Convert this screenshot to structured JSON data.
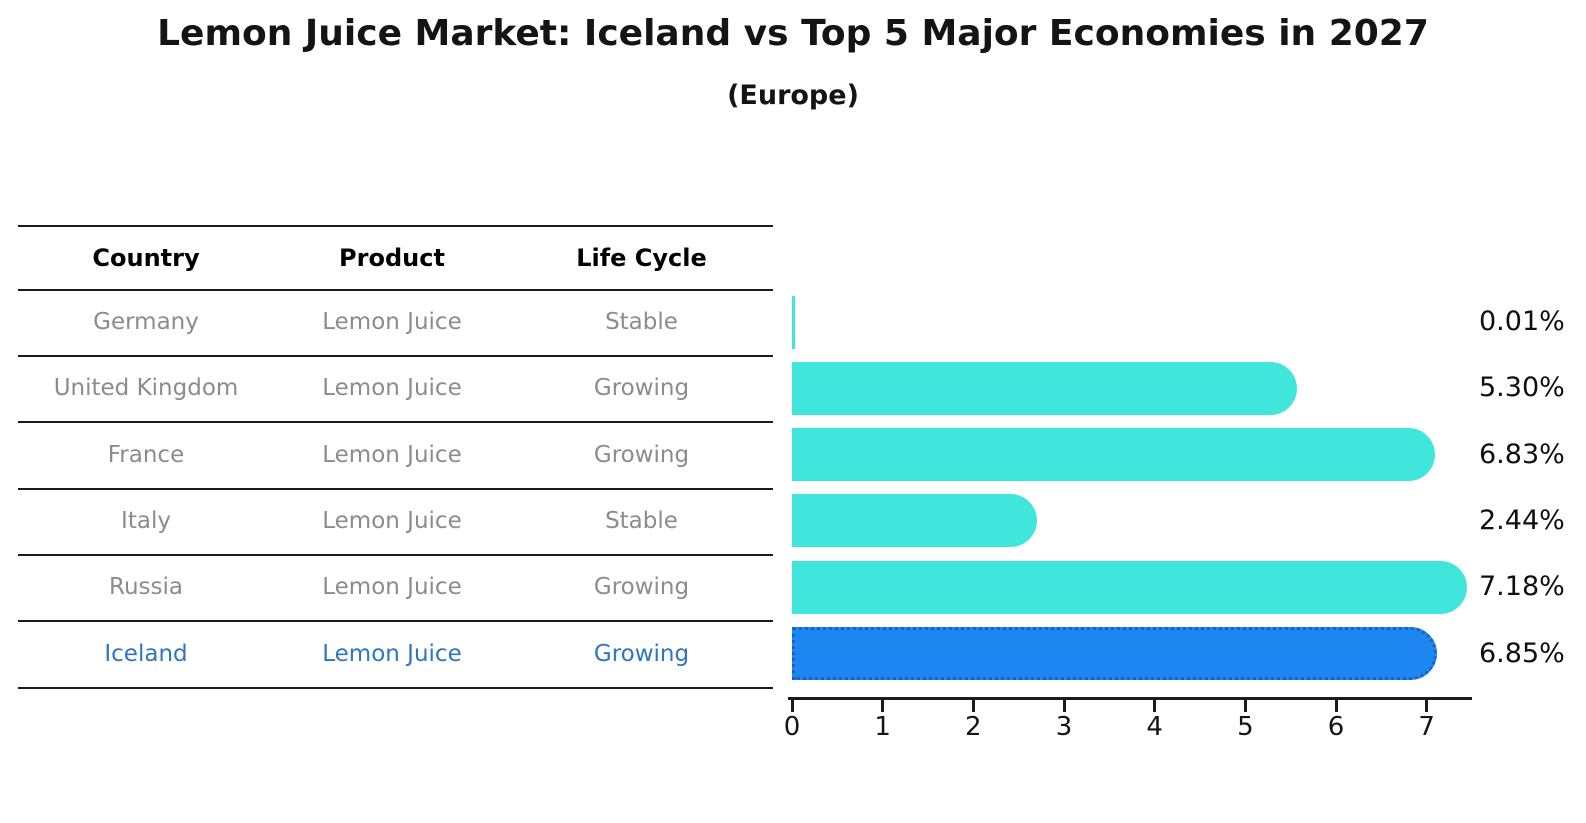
{
  "title": "Lemon Juice Market: Iceland vs Top 5 Major Economies in 2027",
  "subtitle": "(Europe)",
  "table": {
    "headers": {
      "country": "Country",
      "product": "Product",
      "life_cycle": "Life Cycle"
    },
    "rows": [
      {
        "country": "Germany",
        "product": "Lemon Juice",
        "life_cycle": "Stable",
        "value_label": "0.01%"
      },
      {
        "country": "United Kingdom",
        "product": "Lemon Juice",
        "life_cycle": "Growing",
        "value_label": "5.30%"
      },
      {
        "country": "France",
        "product": "Lemon Juice",
        "life_cycle": "Growing",
        "value_label": "6.83%"
      },
      {
        "country": "Italy",
        "product": "Lemon Juice",
        "life_cycle": "Stable",
        "value_label": "2.44%"
      },
      {
        "country": "Russia",
        "product": "Lemon Juice",
        "life_cycle": "Growing",
        "value_label": "7.18%"
      },
      {
        "country": "Iceland",
        "product": "Lemon Juice",
        "life_cycle": "Growing",
        "value_label": "6.85%"
      }
    ]
  },
  "chart_data": {
    "type": "bar",
    "orientation": "horizontal",
    "title": "Lemon Juice Market: Iceland vs Top 5 Major Economies in 2027",
    "subtitle": "(Europe)",
    "categories": [
      "Germany",
      "United Kingdom",
      "France",
      "Italy",
      "Russia",
      "Iceland"
    ],
    "values": [
      0.01,
      5.3,
      6.83,
      2.44,
      7.18,
      6.85
    ],
    "data_labels": [
      "0.01%",
      "5.30%",
      "6.83%",
      "2.44%",
      "7.18%",
      "6.85%"
    ],
    "unit": "percent",
    "xticks": [
      0,
      1,
      2,
      3,
      4,
      5,
      6,
      7
    ],
    "xlim": [
      0,
      7.5
    ],
    "grid": false,
    "legend": false,
    "bar_color": "#40e5dc",
    "highlight_index": 5,
    "highlight_color": "#1e86f0",
    "highlight_border_color": "#1464c8",
    "highlight_text_color": "#2e75c3",
    "row_text_color": "#8c8c8c"
  }
}
